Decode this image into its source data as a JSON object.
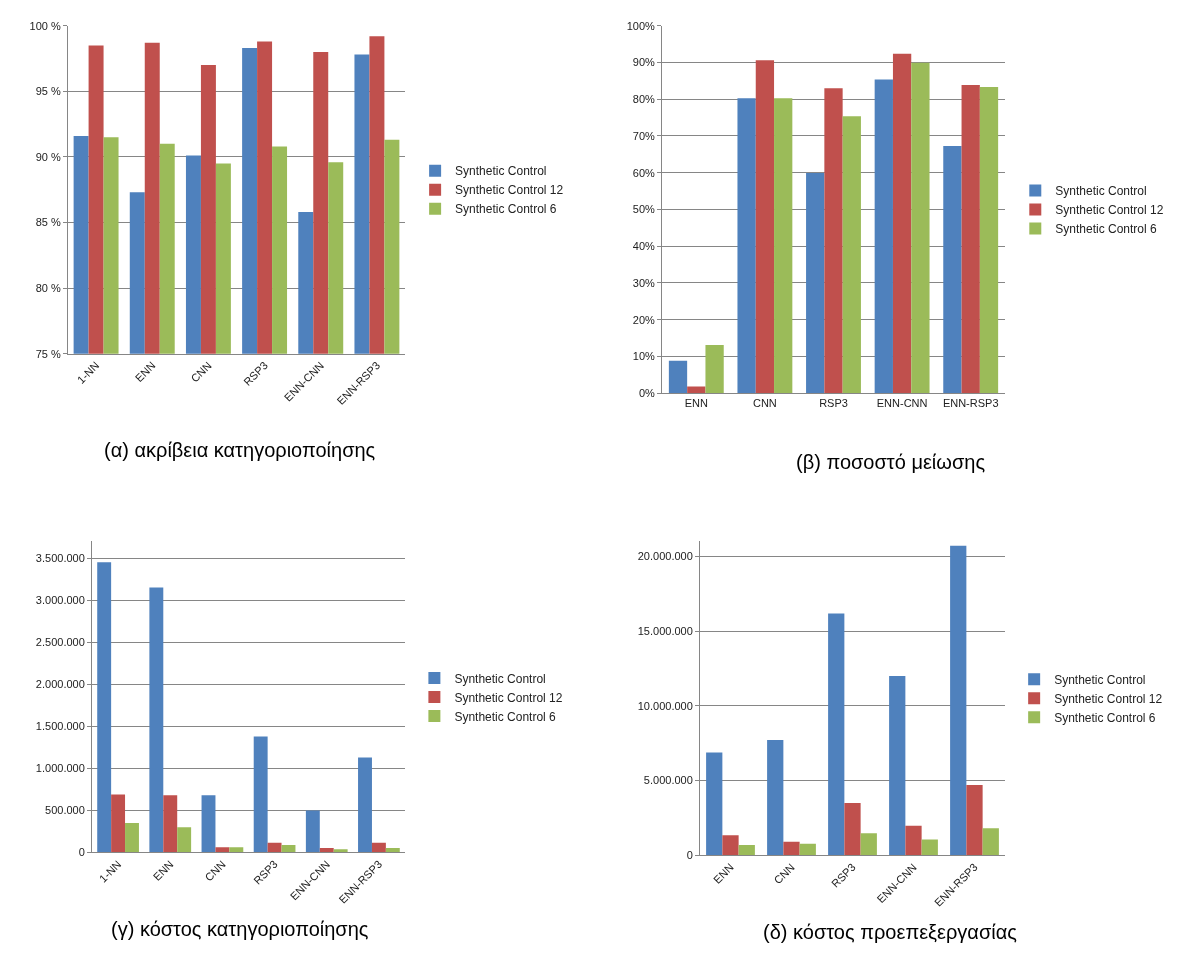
{
  "chart_data": [
    {
      "type": "bar",
      "annotations": [
        "(α) ακρίβεια κατηγοριοποίησης"
      ],
      "categories": [
        "1-NN",
        "ENN",
        "CNN",
        "RSP3",
        "ENN-CNN",
        "ENN-RSP3"
      ],
      "series": [
        {
          "name": "Synthetic Control",
          "color": "#4f81bd",
          "values": [
            91.6,
            87.3,
            90.1,
            98.3,
            85.8,
            97.8
          ]
        },
        {
          "name": "Synthetic Control 12",
          "color": "#c0504d",
          "values": [
            98.5,
            98.7,
            97.0,
            98.8,
            98.0,
            99.2
          ]
        },
        {
          "name": "Synthetic Control 6",
          "color": "#9bbb59",
          "values": [
            91.5,
            91.0,
            89.5,
            90.8,
            89.6,
            91.3
          ]
        }
      ],
      "ylim": [
        75,
        100
      ],
      "yticks": [
        {
          "value": 75,
          "label": "75 %"
        },
        {
          "value": 80,
          "label": "80 %"
        },
        {
          "value": 85,
          "label": "85 %"
        },
        {
          "value": 90,
          "label": "90 %"
        },
        {
          "value": 95,
          "label": "95 %"
        },
        {
          "value": 100,
          "label": "100 %"
        }
      ],
      "grid": "y",
      "legend": "right"
    },
    {
      "type": "bar",
      "annotations": [
        "(β) ποσοστό μείωσης"
      ],
      "categories": [
        "ENN",
        "CNN",
        "RSP3",
        "ENN-CNN",
        "ENN-RSP3"
      ],
      "series": [
        {
          "name": "Synthetic Control",
          "color": "#4f81bd",
          "values": [
            8.8,
            80.3,
            59.9,
            85.4,
            67.3
          ]
        },
        {
          "name": "Synthetic Control 12",
          "color": "#c0504d",
          "values": [
            1.8,
            90.6,
            83.0,
            92.4,
            83.9
          ]
        },
        {
          "name": "Synthetic Control 6",
          "color": "#9bbb59",
          "values": [
            13.1,
            80.3,
            75.4,
            89.9,
            83.3
          ]
        }
      ],
      "ylim": [
        0,
        100
      ],
      "yticks": [
        {
          "value": 0,
          "label": "0%"
        },
        {
          "value": 10,
          "label": "10%"
        },
        {
          "value": 20,
          "label": "20%"
        },
        {
          "value": 30,
          "label": "30%"
        },
        {
          "value": 40,
          "label": "40%"
        },
        {
          "value": 50,
          "label": "50%"
        },
        {
          "value": 60,
          "label": "60%"
        },
        {
          "value": 70,
          "label": "70%"
        },
        {
          "value": 80,
          "label": "80%"
        },
        {
          "value": 90,
          "label": "90%"
        },
        {
          "value": 100,
          "label": "100%"
        }
      ],
      "grid": "y",
      "legend": "right"
    },
    {
      "type": "bar",
      "annotations": [
        "(γ) κόστος κατηγοριοποίησης"
      ],
      "categories": [
        "1-NN",
        "ENN",
        "CNN",
        "RSP3",
        "ENN-CNN",
        "ENN-RSP3"
      ],
      "series": [
        {
          "name": "Synthetic Control",
          "color": "#4f81bd",
          "values": [
            3450000,
            3150000,
            680000,
            1380000,
            500000,
            1130000
          ]
        },
        {
          "name": "Synthetic Control 12",
          "color": "#c0504d",
          "values": [
            690000,
            680000,
            63000,
            115000,
            52000,
            115000
          ]
        },
        {
          "name": "Synthetic Control 6",
          "color": "#9bbb59",
          "values": [
            350000,
            300000,
            63000,
            90000,
            37000,
            52000
          ]
        }
      ],
      "ylim": [
        0,
        3700000
      ],
      "yticks": [
        0,
        {
          "value": 500000,
          "label": "500.000"
        },
        {
          "value": 1000000,
          "label": "1.000.000"
        },
        {
          "value": 1500000,
          "label": "1.500.000"
        },
        {
          "value": 2000000,
          "label": "2.000.000"
        },
        {
          "value": 2500000,
          "label": "2.500.000"
        },
        {
          "value": 3000000,
          "label": "3.000.000"
        },
        {
          "value": 3500000,
          "label": "3.500.000"
        }
      ],
      "grid": "y",
      "legend": "right"
    },
    {
      "type": "bar",
      "annotations": [
        "(δ) κόστος προεπεξεργασίας"
      ],
      "categories": [
        "ENN",
        "CNN",
        "RSP3",
        "ENN-CNN",
        "ENN-RSP3"
      ],
      "series": [
        {
          "name": "Synthetic Control",
          "color": "#4f81bd",
          "values": [
            6880000,
            7720000,
            16180000,
            11990000,
            20700000
          ]
        },
        {
          "name": "Synthetic Control 12",
          "color": "#c0504d",
          "values": [
            1340000,
            920000,
            3500000,
            1990000,
            4700000
          ]
        },
        {
          "name": "Synthetic Control 6",
          "color": "#9bbb59",
          "values": [
            690000,
            780000,
            1490000,
            1070000,
            1820000
          ]
        }
      ],
      "ylim": [
        0,
        21000000
      ],
      "yticks": [
        0,
        {
          "value": 5000000,
          "label": "5.000.000"
        },
        {
          "value": 10000000,
          "label": "10.000.000"
        },
        {
          "value": 15000000,
          "label": "15.000.000"
        },
        {
          "value": 20000000,
          "label": "20.000.000"
        }
      ],
      "grid": "y",
      "legend": "right"
    }
  ]
}
